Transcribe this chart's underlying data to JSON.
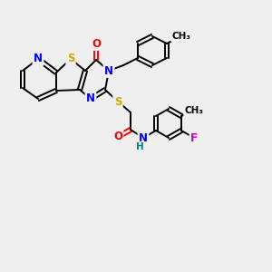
{
  "background_color": "#efefef",
  "bond_color": "#000000",
  "atom_colors": {
    "N": "#0000ff",
    "O": "#ff0000",
    "S": "#ccaa00",
    "F": "#cc00cc",
    "H": "#008080",
    "C": "#000000"
  },
  "lw": 1.4,
  "font_size": 8.5,
  "figsize": [
    3.0,
    3.0
  ],
  "dpi": 100
}
